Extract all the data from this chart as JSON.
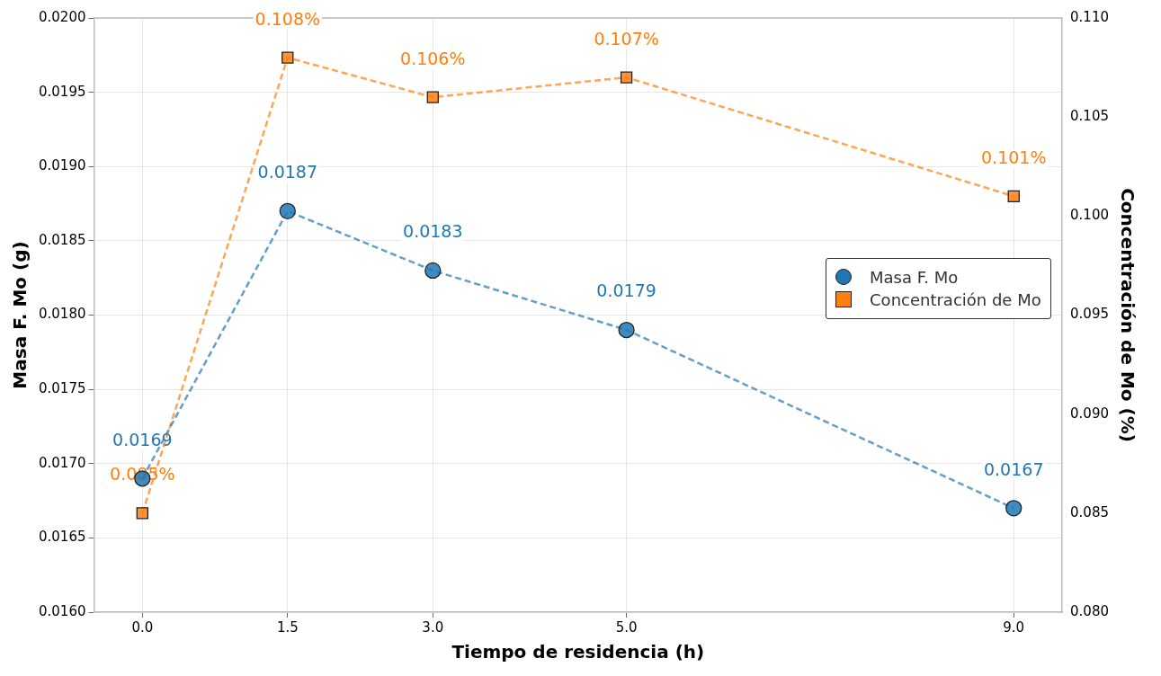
{
  "chart_data": {
    "type": "line",
    "xlabel": "Tiempo de residencia (h)",
    "ylabel": "Masa F. Mo (g)",
    "y2label": "Concentración de Mo (%)",
    "x": [
      0,
      1.5,
      3,
      5,
      9
    ],
    "xlim": [
      -0.5,
      9.5
    ],
    "xticks": [
      {
        "value": 0,
        "label": "0.0"
      },
      1.5,
      {
        "value": 3,
        "label": "3.0"
      },
      {
        "value": 5,
        "label": "5.0"
      },
      {
        "value": 9,
        "label": "9.0"
      }
    ],
    "ylim": [
      0.016,
      0.02
    ],
    "yticks": [
      {
        "value": 0.016,
        "label": "0.0160"
      },
      {
        "value": 0.0165,
        "label": "0.0165"
      },
      {
        "value": 0.017,
        "label": "0.0170"
      },
      {
        "value": 0.0175,
        "label": "0.0175"
      },
      {
        "value": 0.018,
        "label": "0.0180"
      },
      {
        "value": 0.0185,
        "label": "0.0185"
      },
      {
        "value": 0.019,
        "label": "0.0190"
      },
      {
        "value": 0.0195,
        "label": "0.0195"
      },
      {
        "value": 0.02,
        "label": "0.0200"
      }
    ],
    "y2lim": [
      0.08,
      0.11
    ],
    "y2ticks": [
      {
        "value": 0.08,
        "label": "0.080"
      },
      {
        "value": 0.085,
        "label": "0.085"
      },
      {
        "value": 0.09,
        "label": "0.090"
      },
      {
        "value": 0.095,
        "label": "0.095"
      },
      {
        "value": 0.1,
        "label": "0.100"
      },
      {
        "value": 0.105,
        "label": "0.105"
      },
      {
        "value": 0.11,
        "label": "0.110"
      }
    ],
    "series": [
      {
        "name": "Masa F. Mo",
        "color": "#1f77b4",
        "marker": "circle",
        "values": [
          0.0169,
          0.0187,
          0.0183,
          0.0179,
          0.0167
        ],
        "value_labels": [
          "0.0169",
          "0.0187",
          "0.0183",
          "0.0179",
          "0.0167"
        ]
      },
      {
        "name": "Concentración de Mo",
        "color": "#ff7f0e",
        "marker": "square",
        "axis": "y2",
        "values": [
          0.085,
          0.108,
          0.106,
          0.107,
          0.101
        ],
        "value_labels": [
          "0.085%",
          "0.108%",
          "0.106%",
          "0.107%",
          "0.101%"
        ]
      }
    ],
    "line_style": "dashed",
    "grid": true,
    "legend": "center right"
  }
}
